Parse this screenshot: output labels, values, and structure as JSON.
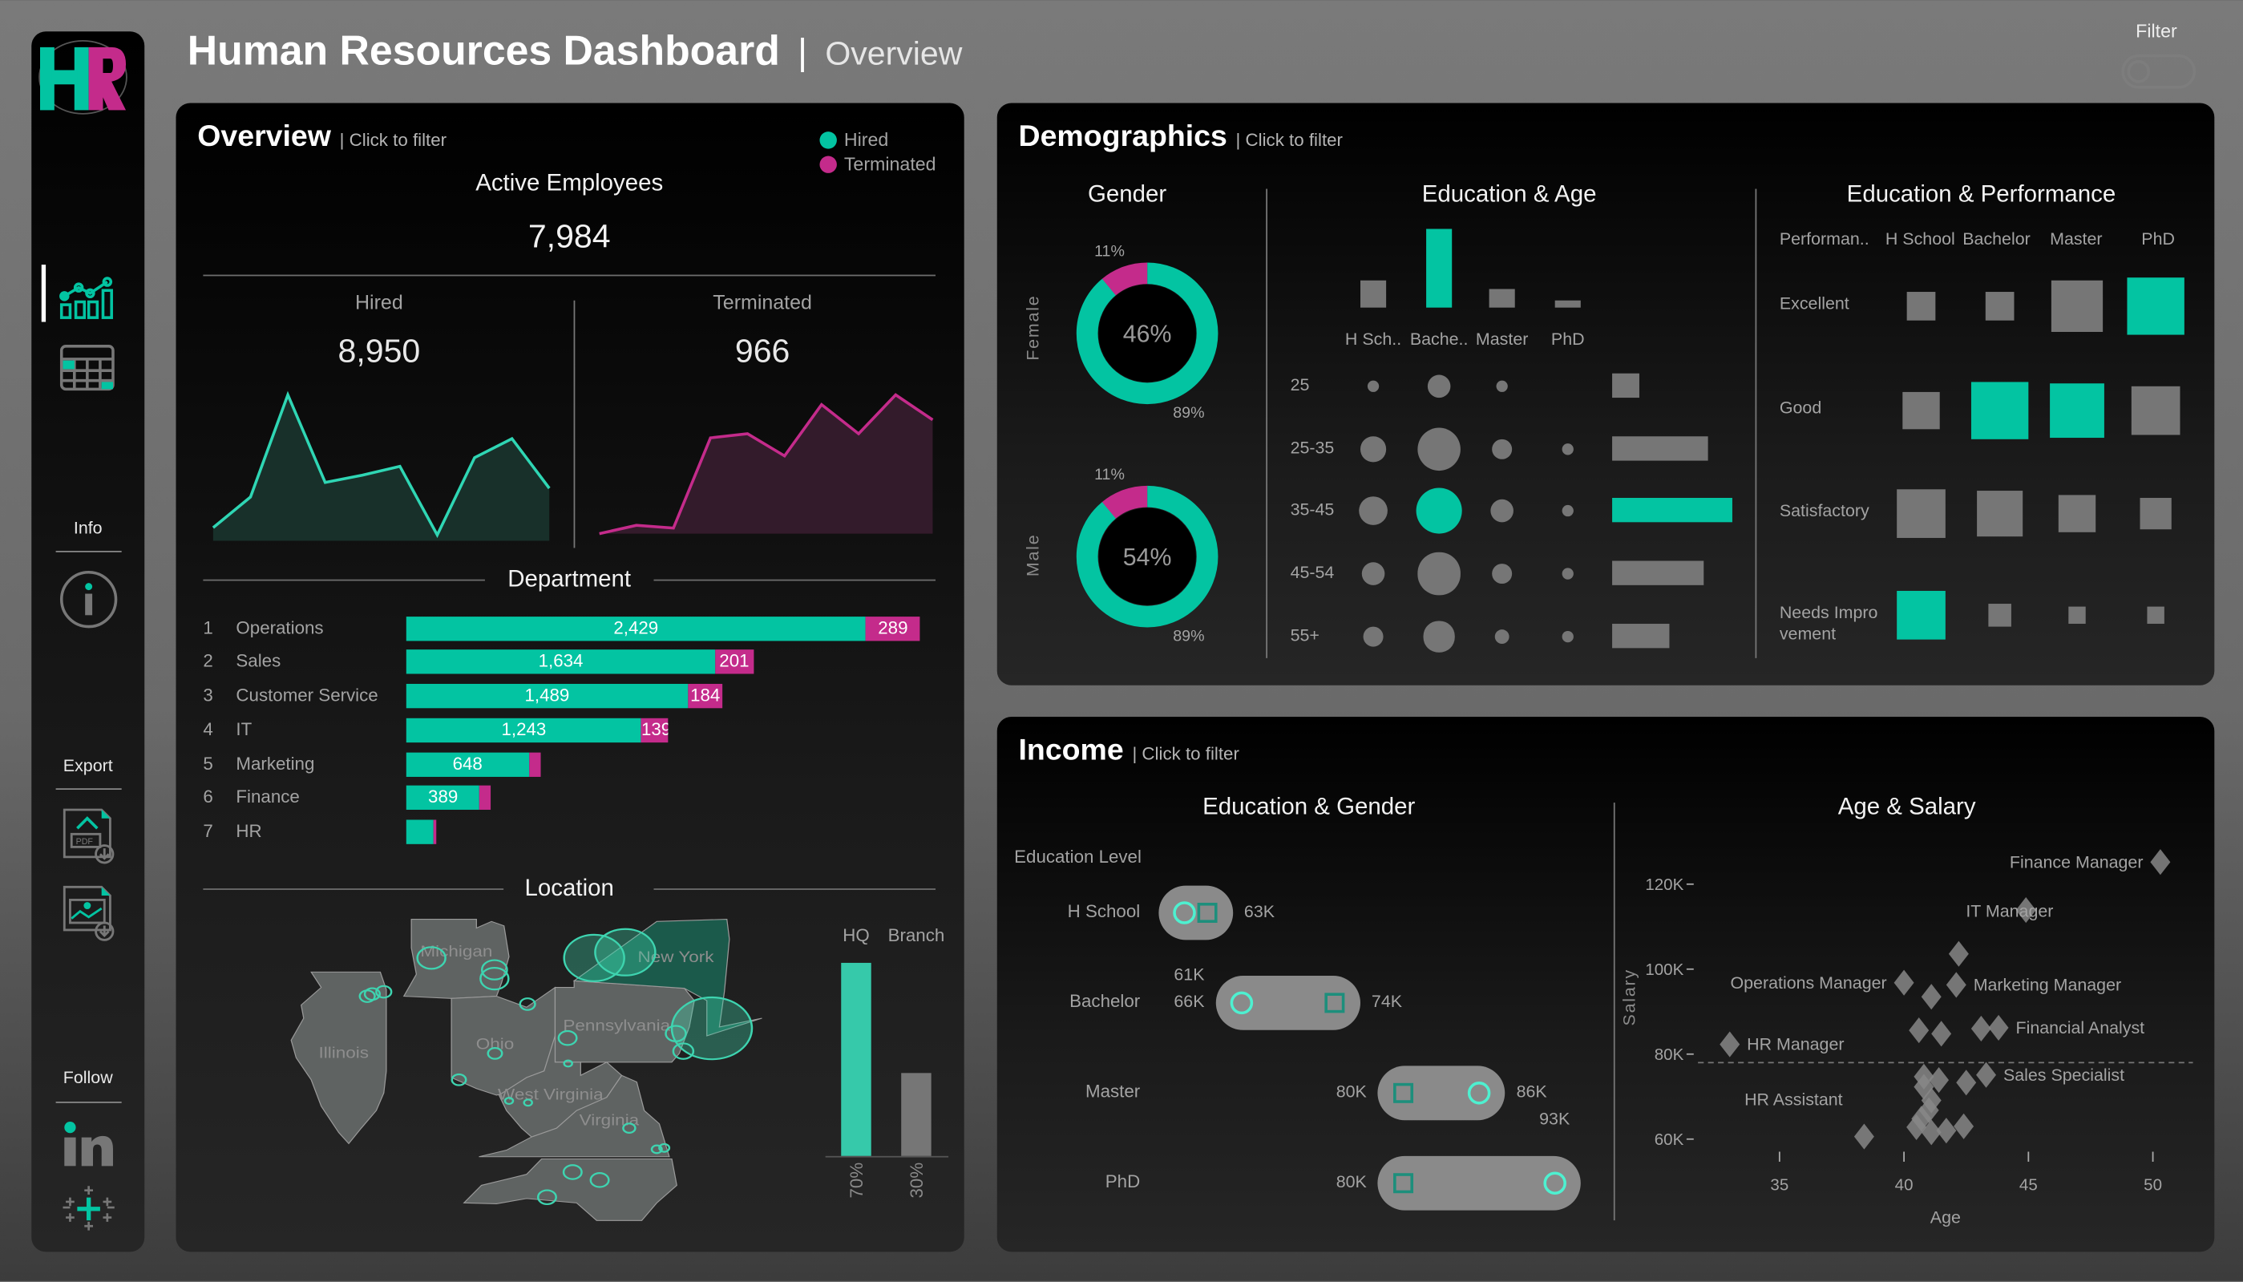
{
  "header": {
    "title": "Human Resources Dashboard",
    "separator": "|",
    "subtitle": "Overview",
    "filter_label": "Filter",
    "filter_on": false
  },
  "sidebar": {
    "logo": "HR",
    "nav": [
      {
        "icon": "analytics-chart-icon",
        "active": true
      },
      {
        "icon": "table-icon",
        "active": false
      }
    ],
    "info_label": "Info",
    "export_label": "Export",
    "follow_label": "Follow"
  },
  "colors": {
    "hired": "#03c4a2",
    "terminated": "#c42b8b",
    "neutral": "#767676",
    "accent_ring": "#4ef0d0"
  },
  "overview": {
    "title": "Overview",
    "hint": "| Click to filter",
    "legend": [
      "Hired",
      "Terminated"
    ],
    "active_label": "Active Employees",
    "active_value": "7,984",
    "hired_label": "Hired",
    "hired_value": "8,950",
    "terminated_label": "Terminated",
    "terminated_value": "966",
    "hired_trend": [
      9,
      30,
      100,
      40,
      45,
      51,
      4,
      57,
      70,
      36
    ],
    "terminated_trend": [
      0,
      6,
      4,
      69,
      72,
      56,
      93,
      72,
      100,
      82
    ],
    "department": {
      "title": "Department",
      "rows": [
        {
          "rank": "1",
          "name": "Operations",
          "hired": 2429,
          "terminated": 289
        },
        {
          "rank": "2",
          "name": "Sales",
          "hired": 1634,
          "terminated": 201
        },
        {
          "rank": "3",
          "name": "Customer Service",
          "hired": 1489,
          "terminated": 184
        },
        {
          "rank": "4",
          "name": "IT",
          "hired": 1243,
          "terminated": 139
        },
        {
          "rank": "5",
          "name": "Marketing",
          "hired": 648,
          "terminated": 66
        },
        {
          "rank": "6",
          "name": "Finance",
          "hired": 389,
          "terminated": 55
        },
        {
          "rank": "7",
          "name": "HR",
          "hired": 145,
          "terminated": 15
        }
      ]
    },
    "location": {
      "title": "Location",
      "states": [
        "Illinois",
        "Michigan",
        "Ohio",
        "Pennsylvania",
        "New York",
        "West Virginia",
        "Virginia"
      ],
      "highlighted_state": "New York",
      "type_bars": [
        {
          "label": "HQ",
          "pct": 70,
          "pct_label": "70%",
          "highlight": true
        },
        {
          "label": "Branch",
          "pct": 30,
          "pct_label": "30%",
          "highlight": false
        }
      ]
    }
  },
  "demographics": {
    "title": "Demographics",
    "hint": "| Click to filter",
    "gender": {
      "title": "Gender",
      "items": [
        {
          "label": "Female",
          "share": "46%",
          "hired_pct": 89,
          "terminated_pct": 11,
          "hired_label": "89%",
          "terminated_label": "11%"
        },
        {
          "label": "Male",
          "share": "54%",
          "hired_pct": 89,
          "terminated_pct": 11,
          "hired_label": "89%",
          "terminated_label": "11%"
        }
      ]
    },
    "education_age": {
      "title": "Education & Age",
      "education": [
        "H Sch..",
        "Bache..",
        "Master",
        "PhD"
      ],
      "education_totals": [
        34,
        100,
        24,
        9
      ],
      "highlight_education": 1,
      "ages": [
        "25",
        "25-35",
        "35-45",
        "45-54",
        "55+"
      ],
      "age_totals": [
        23,
        80,
        100,
        76,
        48
      ],
      "highlight_age": 2,
      "bubbles": [
        [
          28,
          50,
          25,
          0
        ],
        [
          55,
          94,
          44,
          25
        ],
        [
          63,
          100,
          50,
          28
        ],
        [
          50,
          91,
          44,
          25
        ],
        [
          44,
          66,
          34,
          28
        ]
      ]
    },
    "education_performance": {
      "title": "Education & Performance",
      "header": [
        "Performan..",
        "H School",
        "Bachelor",
        "Master",
        "PhD"
      ],
      "rows": [
        {
          "label": "Excellent",
          "sizes": [
            50,
            50,
            88,
            100
          ],
          "highlight": [
            false,
            false,
            false,
            true
          ]
        },
        {
          "label": "Good",
          "sizes": [
            65,
            100,
            93,
            83
          ],
          "highlight": [
            false,
            true,
            true,
            false
          ]
        },
        {
          "label": "Satisfactory",
          "sizes": [
            83,
            78,
            65,
            53
          ],
          "highlight": [
            false,
            false,
            false,
            false
          ]
        },
        {
          "label": "Needs Impro vement",
          "sizes": [
            85,
            38,
            30,
            30
          ],
          "highlight": [
            true,
            false,
            false,
            false
          ]
        }
      ]
    }
  },
  "income": {
    "title": "Income",
    "hint": "| Click to filter",
    "education_gender": {
      "title": "Education & Gender",
      "axis_label": "Education Level",
      "rows": [
        {
          "label": "H School",
          "circle": 61,
          "square": 63,
          "left_labels": [],
          "right_labels": [
            "63K"
          ]
        },
        {
          "label": "Bachelor",
          "circle": 66,
          "square": 74,
          "left_labels": [
            "61K",
            "66K"
          ],
          "right_labels": [
            "74K"
          ]
        },
        {
          "label": "Master",
          "circle": 86.5,
          "square": 80,
          "left_labels": [
            "80K"
          ],
          "right_labels": [
            "86K",
            "93K"
          ]
        },
        {
          "label": "PhD",
          "circle": 93,
          "square": 80,
          "left_labels": [
            "80K"
          ],
          "right_labels": []
        }
      ]
    },
    "age_salary": {
      "title": "Age & Salary",
      "xlabel": "Age",
      "ylabel": "Salary",
      "x_ticks": [
        "35",
        "40",
        "45",
        "50"
      ],
      "y_ticks": [
        "120K",
        "100K",
        "80K",
        "60K"
      ],
      "xlim": [
        30,
        52
      ],
      "ylim": [
        55,
        128
      ],
      "reference_line": 78,
      "points": [
        {
          "age": 50.3,
          "salary": 125.2,
          "label": "Finance Manager",
          "label_side": "left"
        },
        {
          "age": 44.9,
          "salary": 113.9,
          "label": "",
          "label_side": ""
        },
        {
          "age": 42.2,
          "salary": 103.6,
          "label": "IT Manager",
          "label_side": "above-right"
        },
        {
          "age": 40.0,
          "salary": 96.8,
          "label": "Operations Manager",
          "label_side": "left"
        },
        {
          "age": 42.1,
          "salary": 96.3,
          "label": "Marketing Manager",
          "label_side": "right"
        },
        {
          "age": 41.1,
          "salary": 93.5,
          "label": "",
          "label_side": ""
        },
        {
          "age": 40.6,
          "salary": 85.6,
          "label": "",
          "label_side": ""
        },
        {
          "age": 41.5,
          "salary": 84.8,
          "label": "",
          "label_side": ""
        },
        {
          "age": 43.1,
          "salary": 86.0,
          "label": "",
          "label_side": ""
        },
        {
          "age": 43.8,
          "salary": 86.2,
          "label": "Financial Analyst",
          "label_side": "right"
        },
        {
          "age": 33.0,
          "salary": 82.3,
          "label": "HR Manager",
          "label_side": "right"
        },
        {
          "age": 43.3,
          "salary": 75.1,
          "label": "Sales Specialist",
          "label_side": "right"
        },
        {
          "age": 42.5,
          "salary": 73.3,
          "label": "",
          "label_side": ""
        },
        {
          "age": 41.4,
          "salary": 73.9,
          "label": "",
          "label_side": ""
        },
        {
          "age": 40.8,
          "salary": 74.7,
          "label": "",
          "label_side": ""
        },
        {
          "age": 40.8,
          "salary": 72.3,
          "label": "",
          "label_side": ""
        },
        {
          "age": 41.1,
          "salary": 69.1,
          "label": "",
          "label_side": ""
        },
        {
          "age": 41.0,
          "salary": 66.8,
          "label": "",
          "label_side": ""
        },
        {
          "age": 40.7,
          "salary": 64.8,
          "label": "",
          "label_side": ""
        },
        {
          "age": 40.5,
          "salary": 62.8,
          "label": "",
          "label_side": ""
        },
        {
          "age": 41.1,
          "salary": 61.6,
          "label": "",
          "label_side": ""
        },
        {
          "age": 41.7,
          "salary": 62.0,
          "label": "",
          "label_side": ""
        },
        {
          "age": 42.4,
          "salary": 63.0,
          "label": "",
          "label_side": ""
        },
        {
          "age": 38.4,
          "salary": 60.6,
          "label": "HR Assistant",
          "label_side": "above-left"
        }
      ]
    }
  }
}
